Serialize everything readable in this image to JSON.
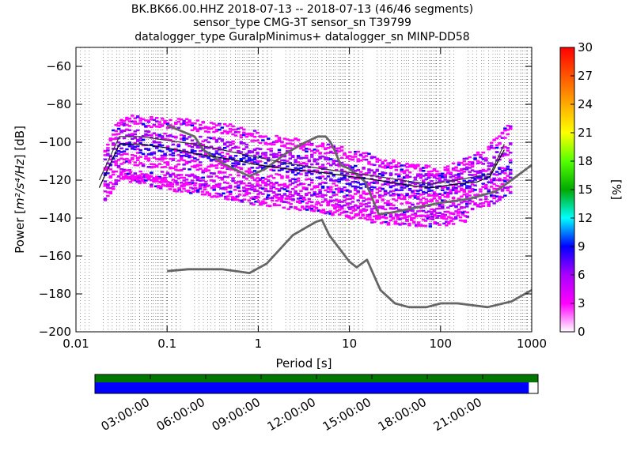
{
  "chart_data": {
    "type": "heatmap",
    "title_lines": [
      "BK.BK66.00.HHZ   2018-07-13 -- 2018-07-13  (46/46 segments)",
      "sensor_type CMG-3T sensor_sn T39799",
      "datalogger_type GuralpMinimus+ datalogger_sn MINP-DD58"
    ],
    "xlabel": "Period [s]",
    "ylabel_prefix": "Power [",
    "ylabel_unit": "m²/s⁴/Hz",
    "ylabel_suffix": "] [dB]",
    "x_scale": "log",
    "xlim": [
      0.01,
      1000
    ],
    "ylim": [
      -200,
      -50
    ],
    "x_ticks": [
      0.01,
      0.1,
      1,
      10,
      100,
      1000
    ],
    "x_tick_labels": [
      "0.01",
      "0.1",
      "1",
      "10",
      "100",
      "1000"
    ],
    "y_ticks": [
      -200,
      -180,
      -160,
      -140,
      -120,
      -100,
      -80,
      -60
    ],
    "y_tick_labels": [
      "−200",
      "−180",
      "−160",
      "−140",
      "−120",
      "−100",
      "−80",
      "−60"
    ],
    "grid": "dotted vertical minor",
    "colorbar": {
      "label": "[%]",
      "min": 0,
      "max": 30,
      "ticks": [
        0,
        3,
        6,
        9,
        12,
        15,
        18,
        21,
        24,
        27,
        30
      ],
      "tick_labels": [
        "0",
        "3",
        "6",
        "9",
        "12",
        "15",
        "18",
        "21",
        "24",
        "27",
        "30"
      ],
      "colormap": [
        "#ffffff",
        "#ff00ff",
        "#aa00ff",
        "#0000ff",
        "#00ffff",
        "#00aa00",
        "#55ff00",
        "#ffff00",
        "#ffaa00",
        "#ff5500",
        "#ff0000"
      ]
    },
    "density_bands": [
      {
        "x": [
          0.02,
          0.03,
          0.1,
          0.5,
          1,
          5,
          10,
          30,
          100,
          300,
          600
        ],
        "y": [
          -104,
          -88,
          -89,
          -93,
          -97,
          -103,
          -106,
          -112,
          -116,
          -106,
          -90
        ]
      },
      {
        "x": [
          0.02,
          0.03,
          0.1,
          0.5,
          1,
          5,
          10,
          30,
          100,
          300,
          600
        ],
        "y": [
          -111,
          -95,
          -98,
          -101,
          -105,
          -110,
          -114,
          -119,
          -119,
          -112,
          -101
        ]
      },
      {
        "x": [
          0.02,
          0.03,
          0.1,
          0.5,
          1,
          5,
          10,
          30,
          100,
          300,
          600
        ],
        "y": [
          -117,
          -102,
          -104,
          -108,
          -111,
          -116,
          -120,
          -124,
          -125,
          -119,
          -111
        ]
      },
      {
        "x": [
          0.02,
          0.03,
          0.1,
          0.5,
          1,
          5,
          10,
          30,
          100,
          300,
          600
        ],
        "y": [
          -123,
          -108,
          -111,
          -114,
          -118,
          -123,
          -126,
          -130,
          -130,
          -125,
          -117
        ]
      },
      {
        "x": [
          0.02,
          0.03,
          0.1,
          0.5,
          1,
          5,
          10,
          30,
          100,
          300,
          600
        ],
        "y": [
          -128,
          -116,
          -118,
          -121,
          -124,
          -129,
          -132,
          -136,
          -136,
          -131,
          -124
        ]
      },
      {
        "x": [
          0.03,
          0.1,
          0.5,
          1,
          5,
          10,
          30,
          100,
          200
        ],
        "y": [
          -117,
          -122,
          -127,
          -130,
          -134,
          -137,
          -141,
          -141,
          -138
        ]
      }
    ],
    "band_colors": [
      "#ff00ff",
      "#aa00ff",
      "#3300ff",
      "#ff00ff",
      "#cc00ff",
      "#ff00ff"
    ],
    "mode_line": {
      "x": [
        0.018,
        0.022,
        0.03,
        0.05,
        0.1,
        0.2,
        0.5,
        1,
        2,
        5,
        10,
        20,
        50,
        80,
        150,
        250,
        350,
        500
      ],
      "y": [
        -120,
        -111,
        -97,
        -97,
        -99,
        -101,
        -105,
        -108,
        -111,
        -114,
        -116,
        -118,
        -121,
        -122,
        -120,
        -118,
        -117,
        -101
      ]
    },
    "mean_line": {
      "x": [
        0.018,
        0.022,
        0.03,
        0.05,
        0.1,
        0.2,
        0.5,
        1,
        2,
        5,
        10,
        20,
        50,
        80,
        150,
        250,
        350,
        500
      ],
      "y": [
        -124,
        -115,
        -101,
        -101,
        -103,
        -106,
        -109,
        -112,
        -114,
        -116,
        -118,
        -120,
        -123,
        -124,
        -122,
        -121,
        -118,
        -104
      ]
    },
    "nhnm": {
      "x": [
        0.1,
        0.2,
        0.25,
        0.4,
        0.8,
        1.2,
        2,
        3.3,
        4.5,
        5.5,
        6.2,
        7,
        8,
        10,
        15,
        21,
        30,
        60,
        100,
        200,
        400,
        600,
        1000
      ],
      "y": [
        -91,
        -97,
        -104,
        -111,
        -118,
        -114,
        -106,
        -100,
        -97,
        -97,
        -100,
        -105,
        -112,
        -114,
        -121,
        -138,
        -137,
        -134,
        -132,
        -130,
        -126,
        -120,
        -112
      ]
    },
    "nlnm": {
      "x": [
        0.1,
        0.17,
        0.4,
        0.8,
        1.24,
        2.4,
        4.3,
        5,
        6,
        10,
        12,
        15.6,
        21.9,
        31.6,
        45,
        70,
        101,
        154,
        328,
        600,
        1000
      ],
      "y": [
        -168,
        -167,
        -167,
        -169,
        -164,
        -149,
        -142,
        -141,
        -149,
        -163,
        -166,
        -162,
        -178,
        -185,
        -187,
        -187,
        -185,
        -185,
        -187,
        -184,
        -178
      ]
    },
    "timeline": {
      "tick_labels": [
        "03:00:00",
        "06:00:00",
        "09:00:00",
        "12:00:00",
        "15:00:00",
        "18:00:00",
        "21:00:00"
      ],
      "tick_hours": [
        3,
        6,
        9,
        12,
        15,
        18,
        21
      ],
      "range_hours": [
        0,
        24
      ],
      "data_coverage_end_hours": 23.5,
      "coverage_colors": [
        "#007700",
        "#0000ff"
      ]
    }
  }
}
